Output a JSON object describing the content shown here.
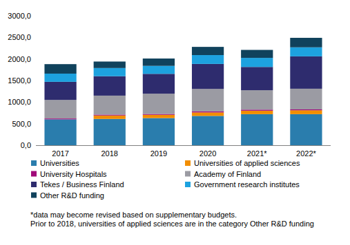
{
  "chart_data": {
    "type": "bar",
    "stacked": true,
    "grid": false,
    "legend": "bottom",
    "categories": [
      "2017",
      "2018",
      "2019",
      "2020",
      "2021*",
      "2022*"
    ],
    "ylim": [
      0,
      3000
    ],
    "yticks": [
      {
        "value": 0,
        "label": "0,0"
      },
      {
        "value": 500,
        "label": "500,0"
      },
      {
        "value": 1000,
        "label": "1000,0"
      },
      {
        "value": 1500,
        "label": "1500,0"
      },
      {
        "value": 2000,
        "label": "2000,0"
      },
      {
        "value": 2500,
        "label": "2500,0"
      },
      {
        "value": 3000,
        "label": "3000,0"
      }
    ],
    "series": [
      {
        "name": "Universities",
        "color": "#2a7dad",
        "values": [
          600,
          610,
          630,
          680,
          720,
          720
        ]
      },
      {
        "name": "Universities of applied sciences",
        "color": "#f28e00",
        "values": [
          0,
          80,
          75,
          80,
          80,
          90
        ]
      },
      {
        "name": "University Hospitals",
        "color": "#a10b7a",
        "values": [
          20,
          20,
          20,
          25,
          25,
          20
        ]
      },
      {
        "name": "Academy of Finland",
        "color": "#9b9ba3",
        "values": [
          430,
          440,
          470,
          520,
          450,
          480
        ]
      },
      {
        "name": "Tekes / Business Finland",
        "color": "#2e2c6e",
        "values": [
          420,
          450,
          460,
          580,
          540,
          750
        ]
      },
      {
        "name": "Government research institutes",
        "color": "#1da2df",
        "values": [
          190,
          190,
          185,
          205,
          210,
          210
        ]
      },
      {
        "name": "Other R&D funding",
        "color": "#10425c",
        "values": [
          220,
          150,
          170,
          190,
          185,
          220
        ]
      }
    ],
    "annotations": [
      "*data may become revised based on supplementary budgets.",
      "Prior to 2018, universities of applied sciences are in the category Other R&D funding"
    ]
  }
}
